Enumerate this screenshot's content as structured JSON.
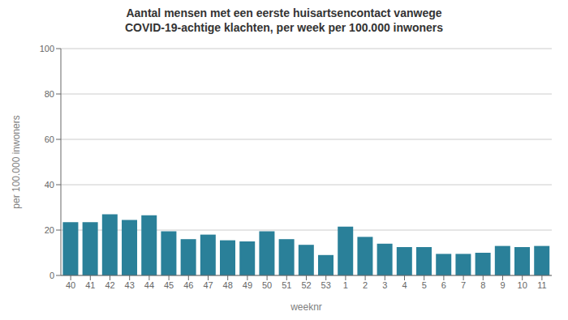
{
  "chart_data": {
    "type": "bar",
    "title": "Aantal mensen met een eerste huisartsencontact vanwege",
    "subtitle": "COVID-19-achtige klachten, per week per 100.000 inwoners",
    "xlabel": "weeknr",
    "ylabel": "per 100.000 inwoners",
    "categories": [
      "40",
      "41",
      "42",
      "43",
      "44",
      "45",
      "46",
      "47",
      "48",
      "49",
      "50",
      "51",
      "52",
      "53",
      "1",
      "2",
      "3",
      "4",
      "5",
      "6",
      "7",
      "8",
      "9",
      "10",
      "11"
    ],
    "values": [
      23.5,
      23.5,
      27.0,
      24.5,
      26.5,
      19.5,
      16.0,
      18.0,
      15.5,
      15.0,
      19.5,
      16.0,
      13.5,
      9.0,
      21.5,
      17.0,
      14.0,
      12.5,
      12.5,
      9.5,
      9.5,
      10.0,
      13.0,
      12.5,
      13.0
    ],
    "color": "#2a8099",
    "ylim": [
      0,
      100
    ],
    "yticks": [
      0,
      20,
      40,
      60,
      80,
      100
    ],
    "grid": true
  }
}
